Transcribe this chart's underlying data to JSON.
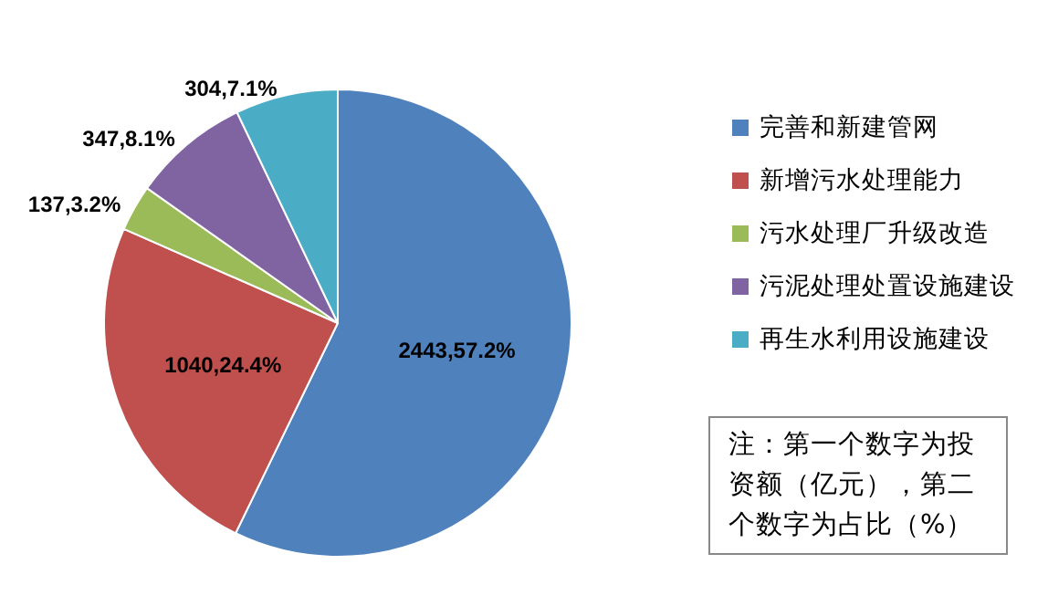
{
  "chart_data": {
    "type": "pie",
    "categories": [
      "完善和新建管网",
      "新增污水处理能力",
      "污水处理厂升级改造",
      "污泥处理处置设施建设",
      "再生水利用设施建设"
    ],
    "values": [
      57.2,
      24.4,
      3.2,
      8.1,
      7.1
    ],
    "value_labels": [
      "2443,57.2%",
      "1040,24.4%",
      "137,3.2%",
      "347,8.1%",
      "304,7.1%"
    ],
    "colors": [
      "#4f81bd",
      "#c0504d",
      "#9bbb59",
      "#8064a2",
      "#4bacc6"
    ],
    "legend": "right",
    "annotations": [
      "注：第一个数字为投资额（亿元），第二个数字为占比（%）"
    ]
  }
}
